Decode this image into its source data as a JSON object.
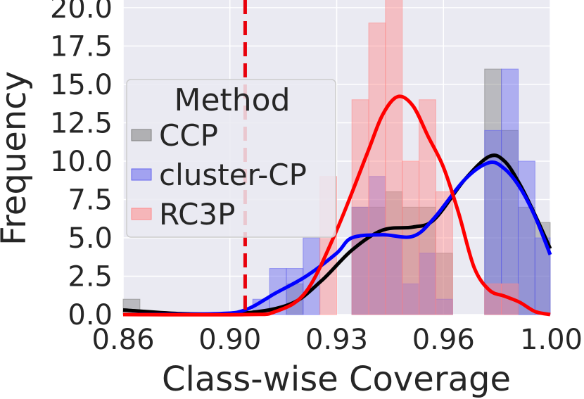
{
  "chart_data": {
    "type": "histogram",
    "xlabel": "Class-wise Coverage",
    "ylabel": "Frequency",
    "xlim": [
      0.86,
      1.0
    ],
    "ylim": [
      0,
      20.5
    ],
    "x_ticks": [
      "0.86",
      "0.90",
      "0.93",
      "0.96",
      "1.00"
    ],
    "x_tick_values": [
      0.86,
      0.895,
      0.93,
      0.965,
      1.0
    ],
    "y_ticks": [
      "0.0",
      "2.5",
      "5.0",
      "7.5",
      "10.0",
      "12.5",
      "15.0",
      "17.5",
      "20.0"
    ],
    "y_tick_values": [
      0,
      2.5,
      5,
      7.5,
      10,
      12.5,
      15,
      17.5,
      20
    ],
    "grid": true,
    "background": "#eaeaf2",
    "reference_line": {
      "x": 0.9,
      "style": "dashed",
      "color": "#e8000b"
    },
    "legend": {
      "title": "Method",
      "position": "upper-left"
    },
    "series": [
      {
        "name": "CCP",
        "color": "#808080",
        "kde_color": "#000000",
        "bins": [
          {
            "x0": 0.86,
            "x1": 0.8655,
            "y": 1
          },
          {
            "x0": 0.9135,
            "x1": 0.919,
            "y": 2
          },
          {
            "x0": 0.935,
            "x1": 0.9405,
            "y": 7
          },
          {
            "x0": 0.9405,
            "x1": 0.946,
            "y": 7
          },
          {
            "x0": 0.946,
            "x1": 0.9515,
            "y": 8
          },
          {
            "x0": 0.9515,
            "x1": 0.957,
            "y": 7
          },
          {
            "x0": 0.957,
            "x1": 0.9625,
            "y": 7
          },
          {
            "x0": 0.9625,
            "x1": 0.968,
            "y": 4
          },
          {
            "x0": 0.9785,
            "x1": 0.984,
            "y": 16
          },
          {
            "x0": 0.984,
            "x1": 0.9895,
            "y": 12
          },
          {
            "x0": 0.9895,
            "x1": 0.995,
            "y": 7
          },
          {
            "x0": 0.995,
            "x1": 1.0,
            "y": 6
          }
        ],
        "kde": [
          [
            0.86,
            0.3
          ],
          [
            0.88,
            0.05
          ],
          [
            0.9,
            0.1
          ],
          [
            0.915,
            0.7
          ],
          [
            0.925,
            2.2
          ],
          [
            0.935,
            4.2
          ],
          [
            0.945,
            5.5
          ],
          [
            0.955,
            5.7
          ],
          [
            0.962,
            6.2
          ],
          [
            0.972,
            8.8
          ],
          [
            0.98,
            10.3
          ],
          [
            0.985,
            10.0
          ],
          [
            0.99,
            8.5
          ],
          [
            0.995,
            6.5
          ],
          [
            1.0,
            4.3
          ]
        ]
      },
      {
        "name": "cluster-CP",
        "color": "#6666ee",
        "kde_color": "#0000ff",
        "bins": [
          {
            "x0": 0.9025,
            "x1": 0.908,
            "y": 1
          },
          {
            "x0": 0.908,
            "x1": 0.9135,
            "y": 3
          },
          {
            "x0": 0.9135,
            "x1": 0.919,
            "y": 3
          },
          {
            "x0": 0.919,
            "x1": 0.9245,
            "y": 5
          },
          {
            "x0": 0.935,
            "x1": 0.9405,
            "y": 7
          },
          {
            "x0": 0.9405,
            "x1": 0.946,
            "y": 9
          },
          {
            "x0": 0.946,
            "x1": 0.9515,
            "y": 5
          },
          {
            "x0": 0.9515,
            "x1": 0.957,
            "y": 2
          },
          {
            "x0": 0.957,
            "x1": 0.9625,
            "y": 4
          },
          {
            "x0": 0.9625,
            "x1": 0.968,
            "y": 1
          },
          {
            "x0": 0.9785,
            "x1": 0.984,
            "y": 12
          },
          {
            "x0": 0.984,
            "x1": 0.9895,
            "y": 16
          },
          {
            "x0": 0.9895,
            "x1": 0.995,
            "y": 10
          },
          {
            "x0": 0.995,
            "x1": 1.0,
            "y": 5
          }
        ],
        "kde": [
          [
            0.86,
            0.0
          ],
          [
            0.89,
            0.05
          ],
          [
            0.9,
            0.3
          ],
          [
            0.91,
            1.4
          ],
          [
            0.92,
            2.5
          ],
          [
            0.93,
            4.0
          ],
          [
            0.935,
            5.0
          ],
          [
            0.945,
            5.2
          ],
          [
            0.955,
            5.1
          ],
          [
            0.962,
            6.3
          ],
          [
            0.972,
            8.8
          ],
          [
            0.98,
            9.9
          ],
          [
            0.985,
            9.5
          ],
          [
            0.99,
            8.3
          ],
          [
            0.995,
            6.4
          ],
          [
            1.0,
            3.9
          ]
        ]
      },
      {
        "name": "RC3P",
        "color": "#ff8a8a",
        "kde_color": "#ff0000",
        "bins": [
          {
            "x0": 0.9245,
            "x1": 0.93,
            "y": 9
          },
          {
            "x0": 0.935,
            "x1": 0.9405,
            "y": 14
          },
          {
            "x0": 0.9405,
            "x1": 0.946,
            "y": 19
          },
          {
            "x0": 0.946,
            "x1": 0.9515,
            "y": 21
          },
          {
            "x0": 0.9515,
            "x1": 0.957,
            "y": 10
          },
          {
            "x0": 0.957,
            "x1": 0.9625,
            "y": 14
          },
          {
            "x0": 0.9625,
            "x1": 0.968,
            "y": 8
          },
          {
            "x0": 0.9785,
            "x1": 0.984,
            "y": 2
          },
          {
            "x0": 0.984,
            "x1": 0.9895,
            "y": 2
          }
        ],
        "kde": [
          [
            0.86,
            0.0
          ],
          [
            0.9,
            0.0
          ],
          [
            0.91,
            0.2
          ],
          [
            0.92,
            1.5
          ],
          [
            0.93,
            5.5
          ],
          [
            0.94,
            10.5
          ],
          [
            0.945,
            13.0
          ],
          [
            0.95,
            14.2
          ],
          [
            0.955,
            13.6
          ],
          [
            0.96,
            11.6
          ],
          [
            0.965,
            9.6
          ],
          [
            0.97,
            6.6
          ],
          [
            0.975,
            3.1
          ],
          [
            0.98,
            1.6
          ],
          [
            0.985,
            1.2
          ],
          [
            0.99,
            0.8
          ],
          [
            0.995,
            0.2
          ],
          [
            1.0,
            0.0
          ]
        ]
      }
    ]
  }
}
